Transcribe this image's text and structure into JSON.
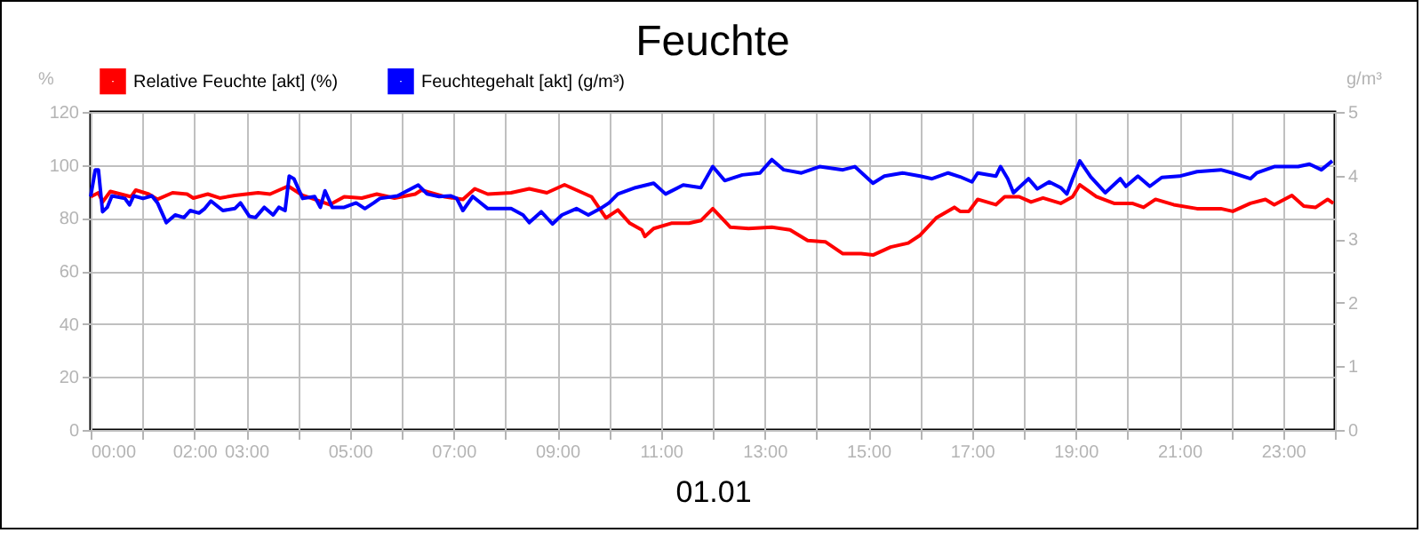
{
  "chart_data": {
    "type": "line",
    "title": "Feuchte",
    "xlabel": "01.01",
    "ylabel": "%",
    "y2label": "g/m³",
    "xlim": [
      0,
      24
    ],
    "xticks": [
      {
        "value": 0,
        "label": "00:00"
      },
      {
        "value": 1,
        "label": null
      },
      {
        "value": 2,
        "label": "02:00"
      },
      {
        "value": 3,
        "label": "03:00"
      },
      {
        "value": 4,
        "label": null
      },
      {
        "value": 5,
        "label": "05:00"
      },
      {
        "value": 6,
        "label": null
      },
      {
        "value": 7,
        "label": "07:00"
      },
      {
        "value": 8,
        "label": null
      },
      {
        "value": 9,
        "label": "09:00"
      },
      {
        "value": 10,
        "label": null
      },
      {
        "value": 11,
        "label": "11:00"
      },
      {
        "value": 12,
        "label": null
      },
      {
        "value": 13,
        "label": "13:00"
      },
      {
        "value": 14,
        "label": null
      },
      {
        "value": 15,
        "label": "15:00"
      },
      {
        "value": 16,
        "label": null
      },
      {
        "value": 17,
        "label": "17:00"
      },
      {
        "value": 18,
        "label": null
      },
      {
        "value": 19,
        "label": "19:00"
      },
      {
        "value": 20,
        "label": null
      },
      {
        "value": 21,
        "label": "21:00"
      },
      {
        "value": 22,
        "label": null
      },
      {
        "value": 23,
        "label": "23:00"
      },
      {
        "value": 24,
        "label": null
      }
    ],
    "ylim": [
      0,
      120
    ],
    "yticks": [
      0,
      20,
      40,
      60,
      80,
      100,
      120
    ],
    "y2lim": [
      0,
      5
    ],
    "y2ticks": [
      0,
      1,
      2,
      3,
      4,
      5
    ],
    "grid": true,
    "legend": "top left",
    "line_style": "solid",
    "marker": "none",
    "series": [
      {
        "name": "Relative Feuchte [akt] (%)",
        "color": "#ff0000",
        "x": [
          0,
          0.15,
          0.23,
          0.38,
          0.78,
          0.87,
          1.12,
          1.29,
          1.58,
          1.86,
          1.98,
          2.26,
          2.49,
          2.78,
          3.23,
          3.46,
          3.81,
          4.09,
          4.32,
          4.61,
          4.89,
          5.23,
          5.52,
          5.86,
          6.26,
          6.38,
          6.83,
          7.18,
          7.41,
          7.66,
          8.11,
          8.46,
          8.8,
          9.14,
          9.43,
          9.66,
          9.94,
          10.17,
          10.4,
          10.63,
          10.69,
          10.86,
          11.2,
          11.54,
          11.77,
          12,
          12.34,
          12.69,
          13.14,
          13.49,
          13.83,
          14.17,
          14.51,
          14.86,
          15.09,
          15.43,
          15.77,
          16,
          16.31,
          16.66,
          16.77,
          16.94,
          17.11,
          17.46,
          17.63,
          17.91,
          18.14,
          18.37,
          18.71,
          18.94,
          19.08,
          19.4,
          19.74,
          20.09,
          20.31,
          20.54,
          20.89,
          21.34,
          21.8,
          22.03,
          22.37,
          22.66,
          22.83,
          23.17,
          23.4,
          23.63,
          23.86,
          23.97
        ],
        "values": [
          88,
          89.5,
          86,
          90,
          88,
          90.5,
          89,
          87,
          89.5,
          89,
          87.5,
          89,
          87.5,
          88.5,
          89.5,
          89,
          92,
          88.5,
          87,
          85,
          88,
          87.5,
          89,
          87.5,
          89,
          90.5,
          88,
          87,
          91,
          89,
          89.5,
          91,
          89.5,
          92.5,
          90,
          88,
          80,
          83,
          78,
          75.5,
          73,
          76,
          78,
          78,
          79,
          83.5,
          76.5,
          76,
          76.5,
          75.5,
          71.5,
          71,
          66.5,
          66.5,
          66,
          69,
          70.5,
          73.5,
          80,
          84,
          82.5,
          82.5,
          87,
          85,
          88,
          88,
          86,
          87.5,
          85.5,
          88,
          92.5,
          88,
          85.5,
          85.5,
          84,
          87,
          85,
          83.5,
          83.5,
          82.5,
          85.5,
          87,
          85,
          88.5,
          84.5,
          84,
          87,
          85.5
        ]
      },
      {
        "name": "Feuchtegehalt [akt] (g/m³)",
        "color": "#0000ff",
        "axis": "y2",
        "x": [
          0,
          0.09,
          0.15,
          0.23,
          0.32,
          0.41,
          0.66,
          0.75,
          0.83,
          1.01,
          1.18,
          1.29,
          1.46,
          1.63,
          1.8,
          1.92,
          2.09,
          2.2,
          2.32,
          2.55,
          2.78,
          2.89,
          3.06,
          3.18,
          3.35,
          3.52,
          3.63,
          3.75,
          3.83,
          3.92,
          4.09,
          4.32,
          4.43,
          4.52,
          4.66,
          4.89,
          5.12,
          5.29,
          5.46,
          5.58,
          5.92,
          6.32,
          6.49,
          6.72,
          6.95,
          7.06,
          7.18,
          7.37,
          7.66,
          8.11,
          8.34,
          8.46,
          8.69,
          8.91,
          9.09,
          9.37,
          9.6,
          9.83,
          10,
          10.17,
          10.51,
          10.86,
          11.09,
          11.43,
          11.77,
          12,
          12.23,
          12.57,
          12.91,
          13.14,
          13.37,
          13.71,
          14.06,
          14.51,
          14.74,
          15.09,
          15.31,
          15.66,
          16,
          16.23,
          16.54,
          16.77,
          17,
          17.11,
          17.46,
          17.55,
          17.69,
          17.8,
          18.09,
          18.26,
          18.49,
          18.71,
          18.83,
          18.94,
          19.08,
          19.29,
          19.57,
          19.86,
          19.97,
          20.2,
          20.43,
          20.66,
          21,
          21.34,
          21.8,
          22.03,
          22.37,
          22.49,
          22.83,
          23.29,
          23.51,
          23.74,
          23.95
        ],
        "values": [
          3.67,
          4.09,
          4.09,
          3.43,
          3.5,
          3.68,
          3.64,
          3.54,
          3.68,
          3.64,
          3.68,
          3.57,
          3.26,
          3.38,
          3.34,
          3.45,
          3.41,
          3.48,
          3.6,
          3.45,
          3.48,
          3.57,
          3.36,
          3.34,
          3.5,
          3.38,
          3.5,
          3.45,
          3.99,
          3.95,
          3.64,
          3.67,
          3.5,
          3.76,
          3.5,
          3.5,
          3.57,
          3.48,
          3.57,
          3.64,
          3.68,
          3.85,
          3.71,
          3.67,
          3.68,
          3.64,
          3.45,
          3.67,
          3.48,
          3.48,
          3.38,
          3.26,
          3.43,
          3.24,
          3.38,
          3.48,
          3.38,
          3.48,
          3.57,
          3.71,
          3.81,
          3.88,
          3.71,
          3.85,
          3.81,
          4.14,
          3.92,
          4.01,
          4.04,
          4.25,
          4.09,
          4.04,
          4.14,
          4.09,
          4.14,
          3.88,
          3.99,
          4.04,
          3.99,
          3.95,
          4.04,
          3.98,
          3.9,
          4.04,
          3.99,
          4.14,
          3.95,
          3.73,
          3.95,
          3.79,
          3.9,
          3.81,
          3.71,
          3.95,
          4.23,
          3.98,
          3.73,
          3.95,
          3.83,
          3.99,
          3.83,
          3.97,
          3.99,
          4.06,
          4.09,
          4.04,
          3.95,
          4.04,
          4.14,
          4.14,
          4.18,
          4.09,
          4.23
        ]
      }
    ]
  }
}
